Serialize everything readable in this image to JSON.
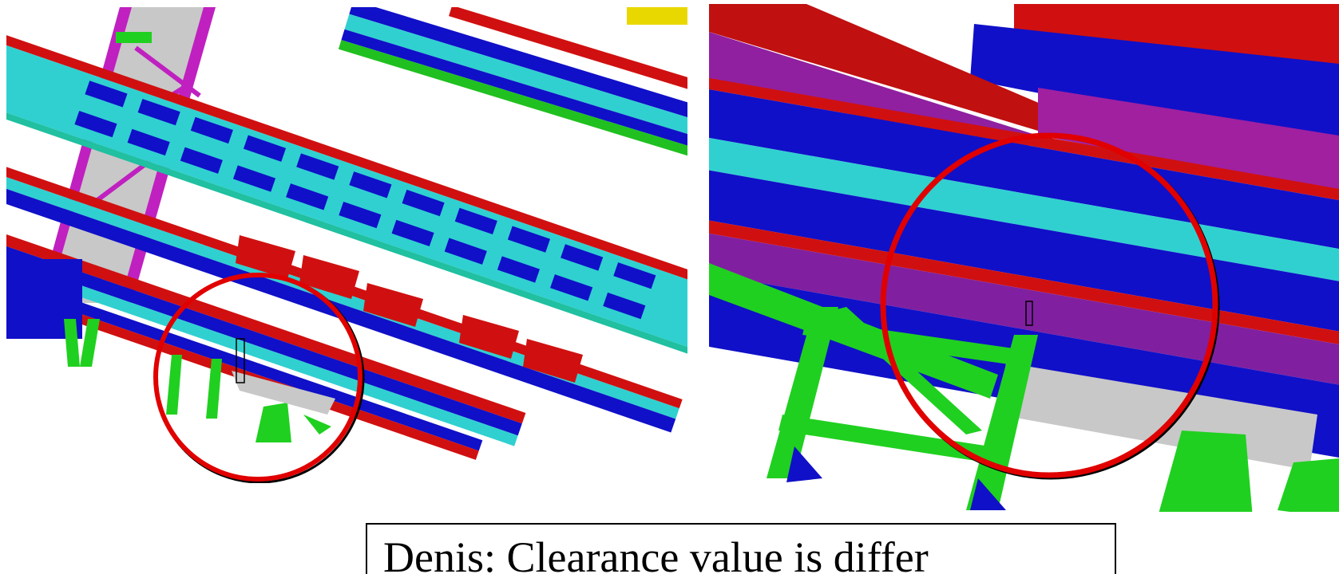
{
  "caption": {
    "text": "Denis: Clearance value is differ"
  }
}
